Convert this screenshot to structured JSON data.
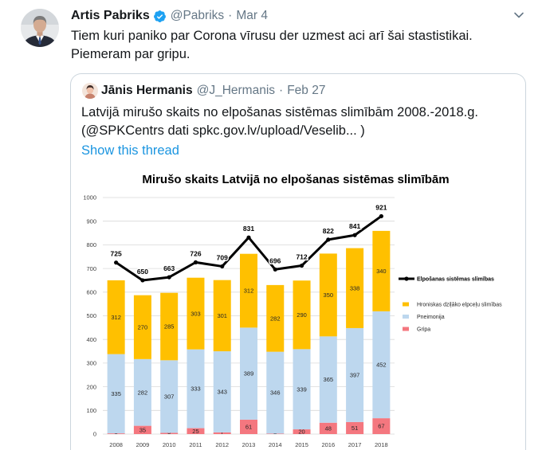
{
  "tweet": {
    "author_name": "Artis Pabriks",
    "author_handle": "@Pabriks",
    "separator": "·",
    "date": "Mar 4",
    "text_lines": [
      "Tiem kuri paniko par Corona vīrusu der uzmest aci arī šai stastistikai.",
      "Piemeram par gripu."
    ]
  },
  "quoted_tweet": {
    "author_name": "Jānis Hermanis",
    "author_handle": "@J_Hermanis",
    "separator": "·",
    "date": "Feb 27",
    "text_lines": [
      "Latvijā mirušo skaits no elpošanas sistēmas slimībām 2008.-2018.g.",
      "(@SPKCentrs dati spkc.gov.lv/upload/Veselib... )"
    ],
    "show_thread_label": "Show this thread"
  },
  "icons": {
    "author_avatar": "avatar",
    "verified": "verified-badge-icon",
    "more_menu": "chevron-down-icon",
    "quoted_author_avatar": "avatar"
  },
  "colors": {
    "text": "#14171a",
    "secondary": "#657786",
    "link": "#1b95e0",
    "border": "#ccd6dd",
    "verified": "#1da1f2"
  },
  "chart_data": {
    "type": "bar",
    "stacked": true,
    "title": "Mirušo skaits Latvijā no elpošanas sistēmas slimībām",
    "xlabel": "",
    "ylabel": "",
    "categories": [
      "2008",
      "2009",
      "2010",
      "2011",
      "2012",
      "2013",
      "2014",
      "2015",
      "2016",
      "2017",
      "2018"
    ],
    "ylim": [
      0,
      1000
    ],
    "yticks": [
      0,
      100,
      200,
      300,
      400,
      500,
      600,
      700,
      800,
      900,
      1000
    ],
    "grid": true,
    "legend_position": "right",
    "series": [
      {
        "name": "Elpošanas sistēmas slimības",
        "type": "line",
        "color": "#000000",
        "values": [
          725,
          650,
          663,
          726,
          709,
          831,
          696,
          712,
          822,
          841,
          921
        ]
      },
      {
        "name": "Hroniskas dziļāko elpceļu slimības",
        "type": "bar",
        "color": "#FFC000",
        "values": [
          312,
          270,
          285,
          303,
          301,
          312,
          282,
          290,
          350,
          338,
          340
        ]
      },
      {
        "name": "Pneimonija",
        "type": "bar",
        "color": "#BDD7EE",
        "values": [
          335,
          282,
          307,
          333,
          343,
          389,
          346,
          339,
          365,
          397,
          452
        ]
      },
      {
        "name": "Gripa",
        "type": "bar",
        "color": "#F4777F",
        "values": [
          3,
          35,
          5,
          25,
          7,
          61,
          2,
          20,
          48,
          51,
          67
        ]
      }
    ]
  }
}
